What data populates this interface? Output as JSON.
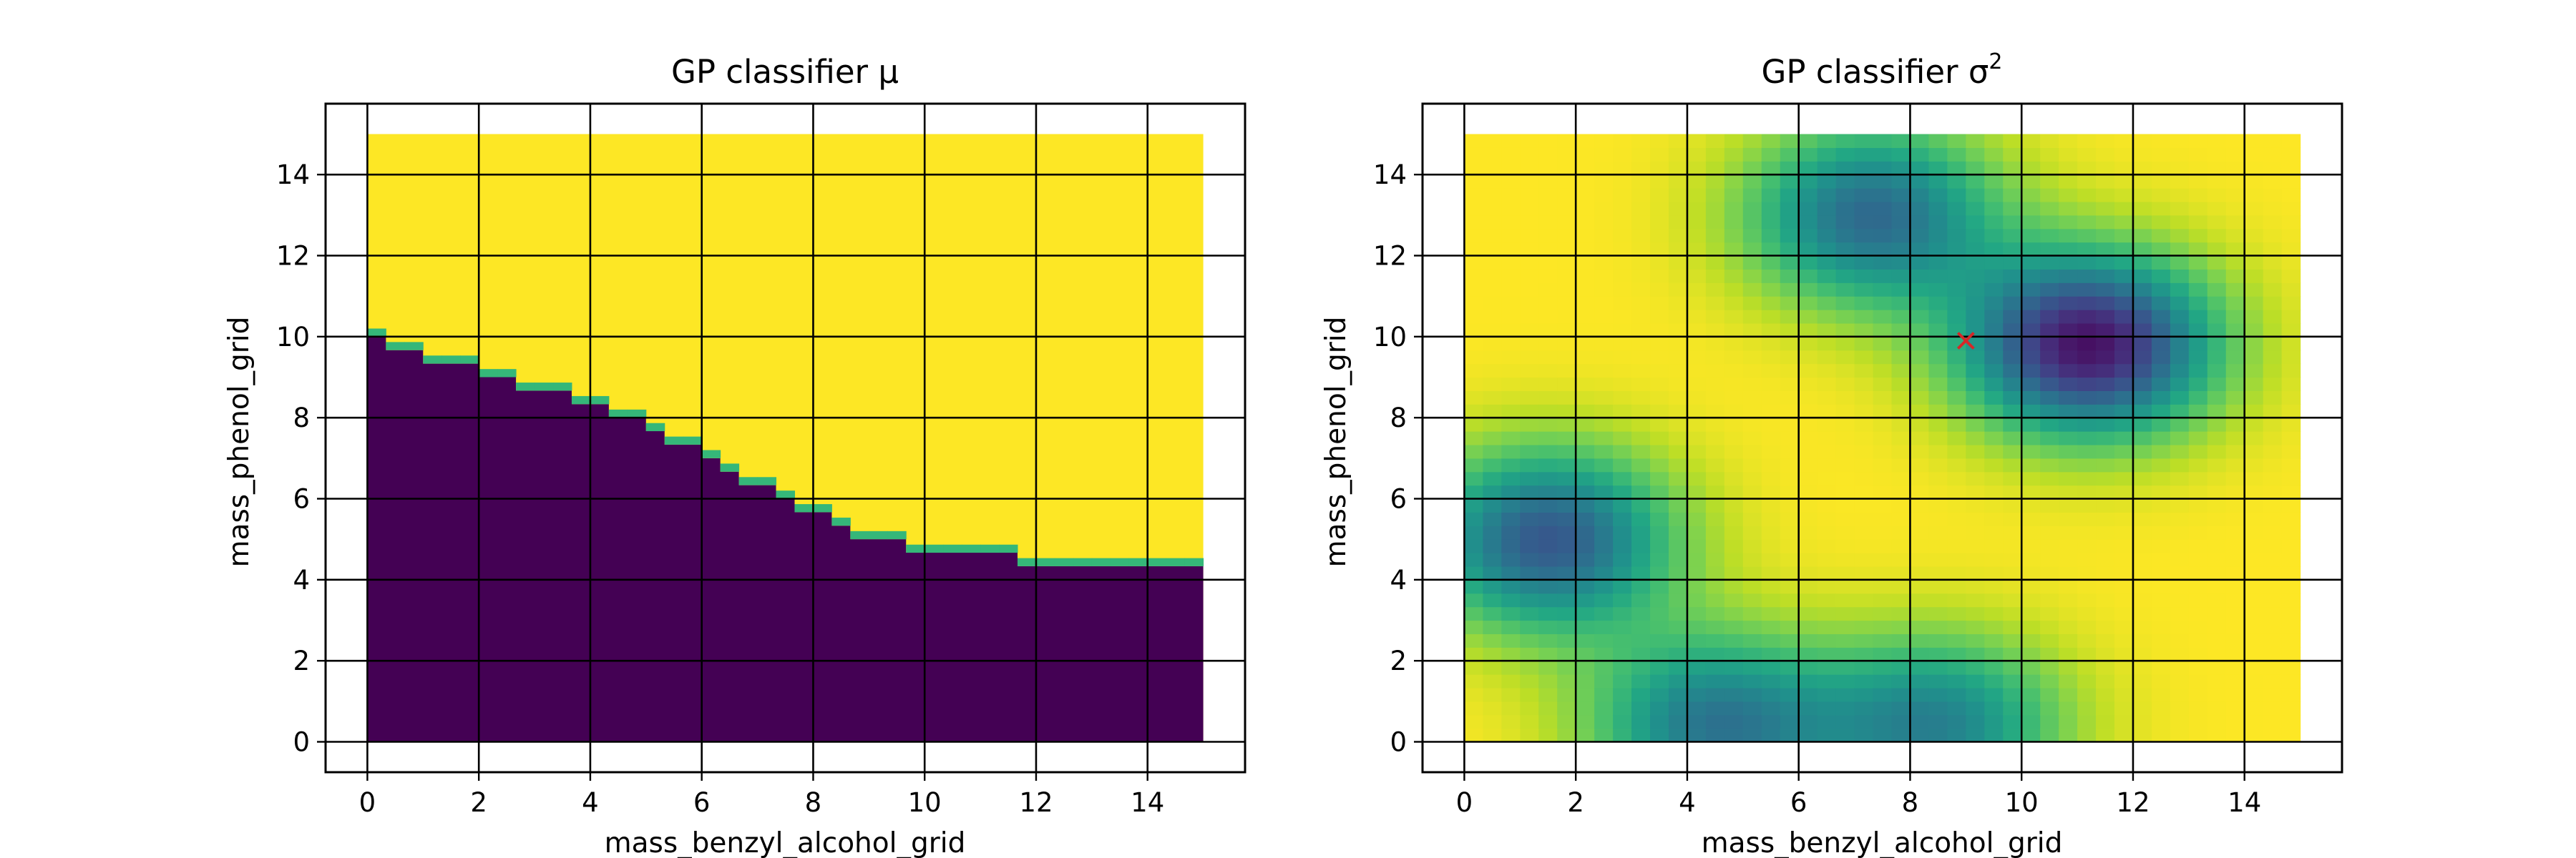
{
  "chart_data": [
    {
      "type": "heatmap",
      "title": "GP classifier μ",
      "xlabel": "mass_benzyl_alcohol_grid",
      "ylabel": "mass_phenol_grid",
      "xlim": [
        -0.75,
        15.75
      ],
      "ylim": [
        -0.75,
        15.75
      ],
      "data_extent": [
        0,
        15
      ],
      "xticks": [
        0,
        2,
        4,
        6,
        8,
        10,
        12,
        14
      ],
      "yticks": [
        0,
        2,
        4,
        6,
        8,
        10,
        12,
        14
      ],
      "grid": true,
      "colormap": "viridis",
      "color_low": "#440154",
      "color_high": "#fde725",
      "color_mid": "#35b779",
      "boundary": {
        "description": "class boundary mass_phenol as function of mass_benzyl_alcohol",
        "x": [
          0,
          1,
          2,
          3,
          4,
          5,
          6,
          7,
          8,
          9,
          10,
          11,
          12,
          13,
          14,
          15
        ],
        "y": [
          10.0,
          9.5,
          9.1,
          8.7,
          8.3,
          7.8,
          7.1,
          6.3,
          5.6,
          5.0,
          4.7,
          4.6,
          4.4,
          4.3,
          4.3,
          4.3
        ]
      }
    },
    {
      "type": "heatmap",
      "title": "GP classifier σ",
      "title_superscript": "2",
      "xlabel": "mass_benzyl_alcohol_grid",
      "ylabel": "mass_phenol_grid",
      "xlim": [
        -0.75,
        15.75
      ],
      "ylim": [
        -0.75,
        15.75
      ],
      "data_extent": [
        0,
        15
      ],
      "xticks": [
        0,
        2,
        4,
        6,
        8,
        10,
        12,
        14
      ],
      "yticks": [
        0,
        2,
        4,
        6,
        8,
        10,
        12,
        14
      ],
      "grid": true,
      "colormap": "viridis",
      "low_variance_centers": [
        {
          "x": 1.5,
          "y": 5.0,
          "depth": 0.72
        },
        {
          "x": 11.2,
          "y": 9.8,
          "depth": 0.95
        },
        {
          "x": 7.3,
          "y": 13.0,
          "depth": 0.65
        },
        {
          "x": 4.5,
          "y": 0.4,
          "depth": 0.6
        },
        {
          "x": 8.5,
          "y": 0.4,
          "depth": 0.55
        }
      ],
      "marker": {
        "x": 9.0,
        "y": 9.9,
        "symbol": "x",
        "color": "#d62728"
      }
    }
  ]
}
